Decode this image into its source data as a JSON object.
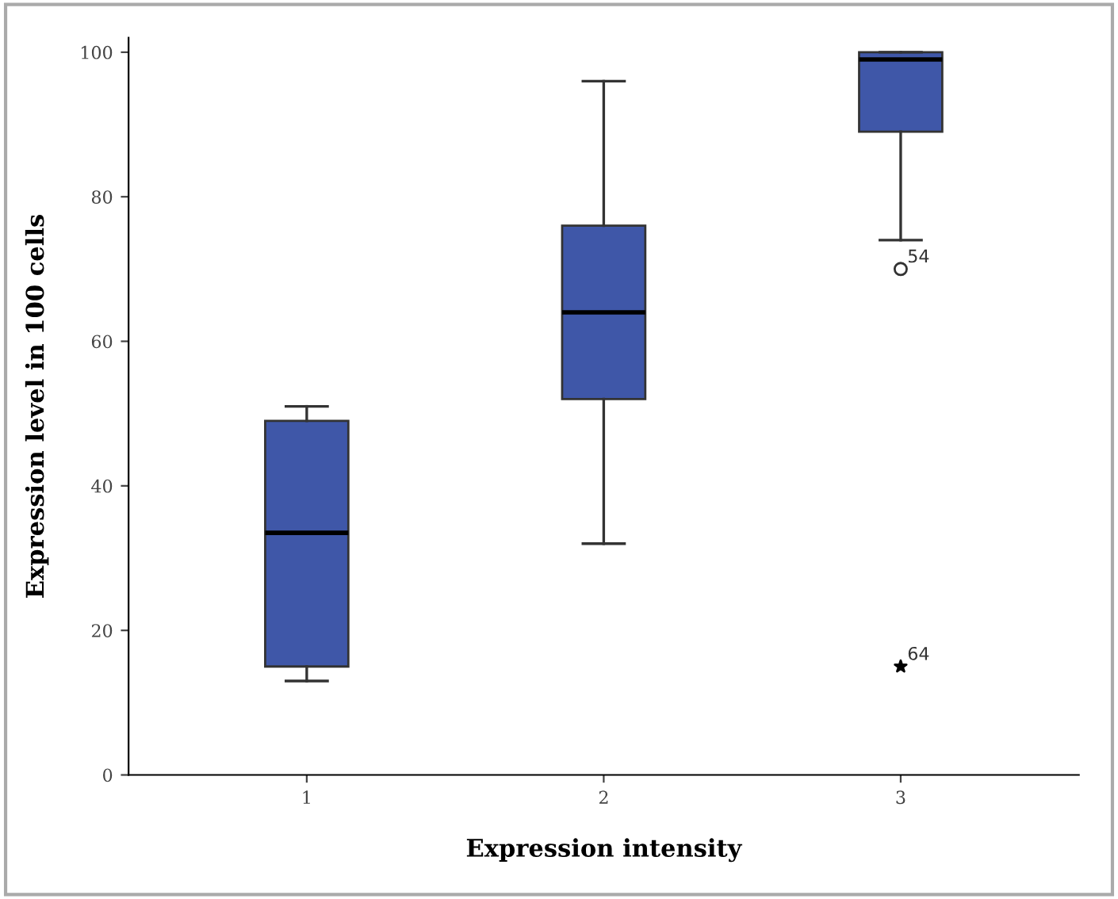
{
  "chart_data": {
    "type": "box",
    "xlabel": "Expression intensity",
    "ylabel": "Expression level in 100 cells",
    "categories": [
      "1",
      "2",
      "3"
    ],
    "series": [
      {
        "color": "#3f57a8",
        "boxes": [
          {
            "low": 13,
            "q1": 15,
            "median": 33.5,
            "q3": 49,
            "high": 51
          },
          {
            "low": 32,
            "q1": 52,
            "median": 64,
            "q3": 76,
            "high": 96
          },
          {
            "low": 74,
            "q1": 89,
            "median": 99,
            "q3": 100,
            "high": 100
          }
        ]
      },
      {
        "type": "scatter",
        "color": "#333333",
        "marker": "circle",
        "x": [
          "3"
        ],
        "values": [
          70
        ]
      },
      {
        "type": "scatter",
        "color": "#000000",
        "marker": "star",
        "x": [
          "3"
        ],
        "values": [
          15
        ]
      }
    ],
    "annotations": [
      {
        "text": "54",
        "x": "3",
        "y": 70
      },
      {
        "text": "64",
        "x": "3",
        "y": 15
      }
    ],
    "ylim": [
      0,
      102
    ],
    "yticks": [
      0,
      20,
      40,
      60,
      80,
      100
    ],
    "grid": false,
    "legend": false
  }
}
